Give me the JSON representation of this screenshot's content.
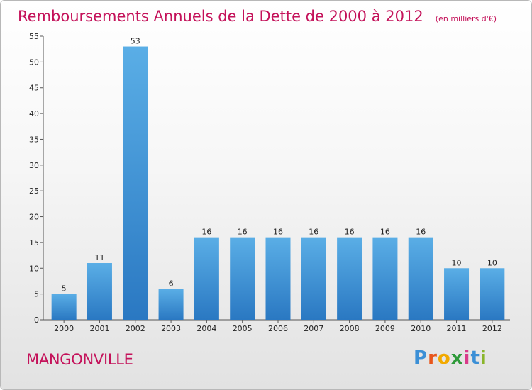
{
  "chart_data": {
    "type": "bar",
    "title": "Remboursements Annuels de la Dette de 2000 à 2012",
    "subtitle": "(en milliers d'€)",
    "categories": [
      "2000",
      "2001",
      "2002",
      "2003",
      "2004",
      "2005",
      "2006",
      "2007",
      "2008",
      "2009",
      "2010",
      "2011",
      "2012"
    ],
    "values": [
      5,
      11,
      53,
      6,
      16,
      16,
      16,
      16,
      16,
      16,
      16,
      10,
      10
    ],
    "data_labels": [
      "5",
      "11",
      "53",
      "6",
      "16",
      "16",
      "16",
      "16",
      "16",
      "16",
      "16",
      "10",
      "10"
    ],
    "yticks": [
      "0",
      "5",
      "10",
      "15",
      "20",
      "25",
      "30",
      "35",
      "40",
      "45",
      "50",
      "55"
    ],
    "ylim": [
      0,
      55
    ],
    "grid": false,
    "bar_colors": {
      "top": "#5aaee6",
      "bottom": "#2a78c2"
    }
  },
  "location": "MANGONVILLE",
  "logo": {
    "text": "Proxiti",
    "letters": [
      "P",
      "r",
      "o",
      "x",
      "i",
      "t",
      "i"
    ]
  }
}
